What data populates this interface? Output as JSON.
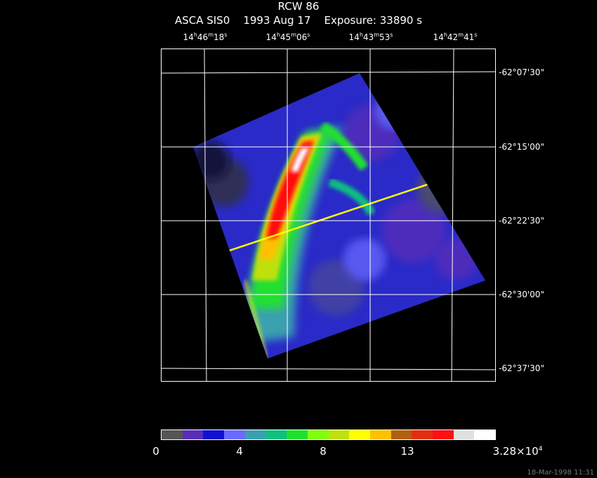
{
  "title": "RCW 86",
  "subtitle": "ASCA SIS0    1993 Aug 17    Exposure: 33890 s",
  "ra_labels": [
    {
      "h": "14",
      "m": "46",
      "s": "18"
    },
    {
      "h": "14",
      "m": "45",
      "s": "06"
    },
    {
      "h": "14",
      "m": "43",
      "s": "53"
    },
    {
      "h": "14",
      "m": "42",
      "s": "41"
    }
  ],
  "dec_labels": [
    "-62°07'30\"",
    "-62°15'00\"",
    "-62°22'30\"",
    "-62°30'00\"",
    "-62°37'30\""
  ],
  "colorbar": {
    "colors": [
      "#555555",
      "#5a2db8",
      "#1010d0",
      "#6a6aff",
      "#3aa0b0",
      "#10c080",
      "#20e030",
      "#80ff10",
      "#c0e010",
      "#ffff00",
      "#ffc000",
      "#b06010",
      "#e03010",
      "#ff1010",
      "#e0e0e0",
      "#ffffff"
    ],
    "tick_labels": [
      "0",
      "4",
      "8",
      "13"
    ],
    "max_label_base": "3.28×10",
    "max_label_exp": "4"
  },
  "timestamp": "18-Mar-1998 11:31"
}
